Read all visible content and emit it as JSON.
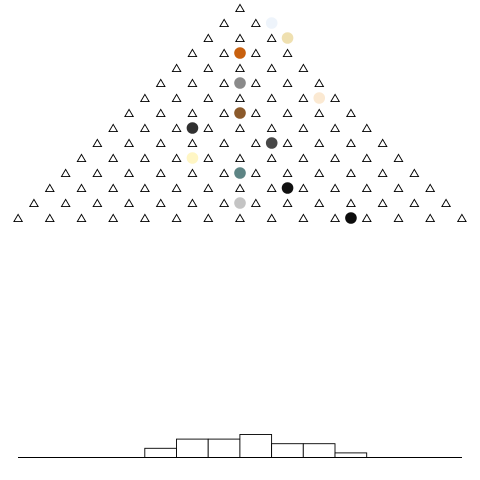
{
  "galton_board": {
    "peg_rows": 15,
    "peg_symbol": "△",
    "peg_color": "#000000",
    "background": "#ffffff",
    "balls": [
      {
        "row": 1,
        "peg": 1,
        "color": "#eef4fb"
      },
      {
        "row": 2,
        "peg": 2,
        "color": "#efe0b0"
      },
      {
        "row": 3,
        "peg": 1,
        "color": "#c8600e"
      },
      {
        "row": 5,
        "peg": 2,
        "color": "#8a8a8a"
      },
      {
        "row": 6,
        "peg": 5,
        "color": "#fbe9d2"
      },
      {
        "row": 7,
        "peg": 3,
        "color": "#8b5a2b"
      },
      {
        "row": 8,
        "peg": 2,
        "color": "#303030"
      },
      {
        "row": 9,
        "peg": 5,
        "color": "#474747"
      },
      {
        "row": 10,
        "peg": 3,
        "color": "#fff6c4"
      },
      {
        "row": 11,
        "peg": 5,
        "color": "#5e8585"
      },
      {
        "row": 12,
        "peg": 7,
        "color": "#101010"
      },
      {
        "row": 13,
        "peg": 6,
        "color": "#c4c4c4"
      },
      {
        "row": 14,
        "peg": 10,
        "color": "#0c0c0c"
      }
    ],
    "histogram": {
      "type": "bar",
      "categories": [
        "0",
        "1",
        "2",
        "3",
        "4",
        "5",
        "6",
        "7",
        "8",
        "9",
        "10",
        "11",
        "12",
        "13",
        "14"
      ],
      "values": [
        0,
        0,
        0,
        0,
        2,
        4,
        4,
        5,
        3,
        3,
        1,
        0,
        0,
        0,
        0
      ],
      "bar_fill": "#ffffff",
      "bar_stroke": "#000000"
    }
  }
}
